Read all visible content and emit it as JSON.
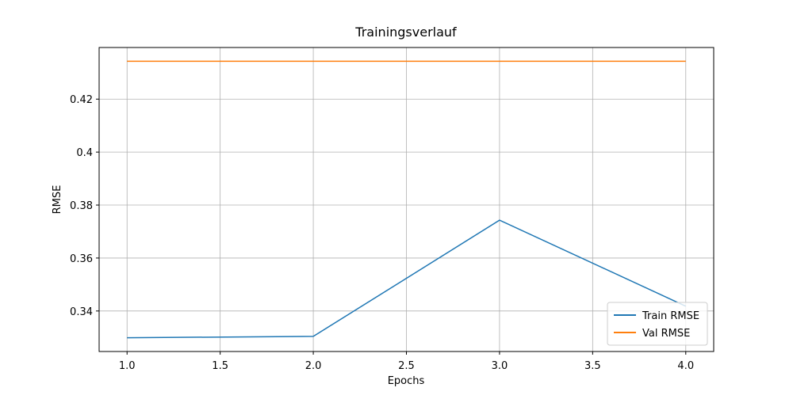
{
  "chart_data": {
    "type": "line",
    "title": "Trainingsverlauf",
    "x_label": "Epochs",
    "y_label": "RMSE",
    "x": [
      1,
      2,
      3,
      4
    ],
    "series": [
      {
        "name": "Train RMSE",
        "color": "#1f77b4",
        "values": [
          0.3299,
          0.3304,
          0.3743,
          0.3418
        ]
      },
      {
        "name": "Val RMSE",
        "color": "#ff7f0e",
        "values": [
          0.4343,
          0.4343,
          0.4343,
          0.4343
        ]
      }
    ],
    "xlim": [
      0.85,
      4.15
    ],
    "xticks": [
      {
        "value": 1,
        "label": "1.0"
      },
      {
        "value": 1.5,
        "label": "1.5"
      },
      {
        "value": 2,
        "label": "2.0"
      },
      {
        "value": 2.5,
        "label": "2.5"
      },
      {
        "value": 3,
        "label": "3.0"
      },
      {
        "value": 3.5,
        "label": "3.5"
      },
      {
        "value": 4,
        "label": "4.0"
      }
    ],
    "ylim": [
      0.3247,
      0.4395
    ],
    "yticks": [
      0.34,
      0.36,
      0.38,
      0.4,
      0.42
    ],
    "grid": true,
    "legend": "lower right"
  }
}
